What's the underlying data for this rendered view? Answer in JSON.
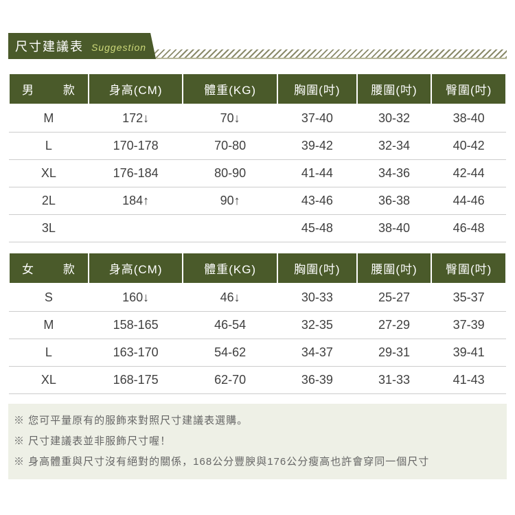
{
  "title": {
    "main": "尺寸建議表",
    "sub": "Suggestion",
    "tab_bg": "#4a5a2a",
    "tab_fg": "#ffffff",
    "sub_fg": "#cdd97a",
    "hatch_color": "#8a8a6a"
  },
  "tables": [
    {
      "header_label": "男　　款",
      "columns": [
        "身高(CM)",
        "體重(KG)",
        "胸圍(吋)",
        "腰圍(吋)",
        "臀圍(吋)"
      ],
      "rows": [
        {
          "size": "M",
          "cells": [
            "172↓",
            "70↓",
            "37-40",
            "30-32",
            "38-40"
          ]
        },
        {
          "size": "L",
          "cells": [
            "170-178",
            "70-80",
            "39-42",
            "32-34",
            "40-42"
          ]
        },
        {
          "size": "XL",
          "cells": [
            "176-184",
            "80-90",
            "41-44",
            "34-36",
            "42-44"
          ]
        },
        {
          "size": "2L",
          "cells": [
            "184↑",
            "90↑",
            "43-46",
            "36-38",
            "44-46"
          ]
        },
        {
          "size": "3L",
          "cells": [
            "",
            "",
            "45-48",
            "38-40",
            "46-48"
          ]
        }
      ]
    },
    {
      "header_label": "女　　款",
      "columns": [
        "身高(CM)",
        "體重(KG)",
        "胸圍(吋)",
        "腰圍(吋)",
        "臀圍(吋)"
      ],
      "rows": [
        {
          "size": "S",
          "cells": [
            "160↓",
            "46↓",
            "30-33",
            "25-27",
            "35-37"
          ]
        },
        {
          "size": "M",
          "cells": [
            "158-165",
            "46-54",
            "32-35",
            "27-29",
            "37-39"
          ]
        },
        {
          "size": "L",
          "cells": [
            "163-170",
            "54-62",
            "34-37",
            "29-31",
            "39-41"
          ]
        },
        {
          "size": "XL",
          "cells": [
            "168-175",
            "62-70",
            "36-39",
            "31-33",
            "41-43"
          ]
        }
      ]
    }
  ],
  "notes": [
    "您可平量原有的服飾來對照尺寸建議表選購。",
    "尺寸建議表並非服飾尺寸喔！",
    "身高體重與尺寸沒有絕對的關係，168公分豐腴與176公分瘦高也許會穿同一個尺寸"
  ],
  "style": {
    "header_bg": "#4a5a2a",
    "header_fg": "#ffffff",
    "row_border": "#cccccc",
    "notes_bg": "#eef0e6",
    "notes_fg": "#666666",
    "body_bg": "#ffffff",
    "font_size_header": 17,
    "font_size_cell": 18,
    "font_size_notes": 15,
    "col_widths_pct": [
      16,
      19,
      19,
      16,
      15,
      15
    ]
  }
}
